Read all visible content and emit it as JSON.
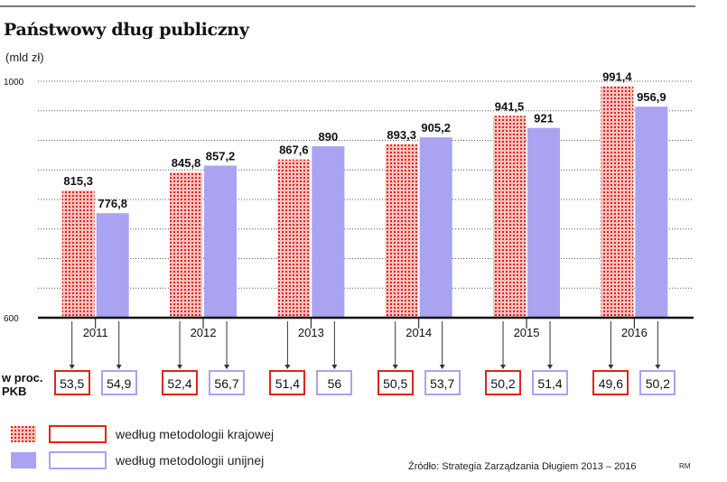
{
  "title": "Państwowy dług publiczny",
  "unit_label": "(mld zł)",
  "percent_label_line1": "w proc.",
  "percent_label_line2": "PKB",
  "legend": {
    "krajowa": "według metodologii krajowej",
    "unijna": "według metodologii unijnej"
  },
  "source": "Źródło: Strategia Zarządzania Długiem 2013 – 2016",
  "credit": "RM",
  "colors": {
    "krajowa": "#e2231a",
    "krajowa_fill": "#f6c3c0",
    "unijna": "#a9a3f1",
    "axis": "#111111"
  },
  "chart_data": {
    "type": "bar",
    "categories": [
      "2011",
      "2012",
      "2013",
      "2014",
      "2015",
      "2016"
    ],
    "series": [
      {
        "name": "według metodologii krajowej",
        "values": [
          815.3,
          845.8,
          867.6,
          893.3,
          941.5,
          991.4
        ],
        "labels": [
          "815,3",
          "845,8",
          "867,6",
          "893,3",
          "941,5",
          "991,4"
        ]
      },
      {
        "name": "według metodologii unijnej",
        "values": [
          776.8,
          857.2,
          890,
          905.2,
          921,
          956.9
        ],
        "labels": [
          "776,8",
          "857,2",
          "890",
          "905,2",
          "921",
          "956,9"
        ]
      }
    ],
    "ylim": [
      600,
      1000
    ],
    "yticks": [
      "600",
      "1000"
    ],
    "grid": true,
    "percent_gdp": {
      "krajowa": [
        "53,5",
        "52,4",
        "51,4",
        "50,5",
        "50,2",
        "49,6"
      ],
      "unijna": [
        "54,9",
        "56,7",
        "56",
        "53,7",
        "51,4",
        "50,2"
      ]
    }
  }
}
